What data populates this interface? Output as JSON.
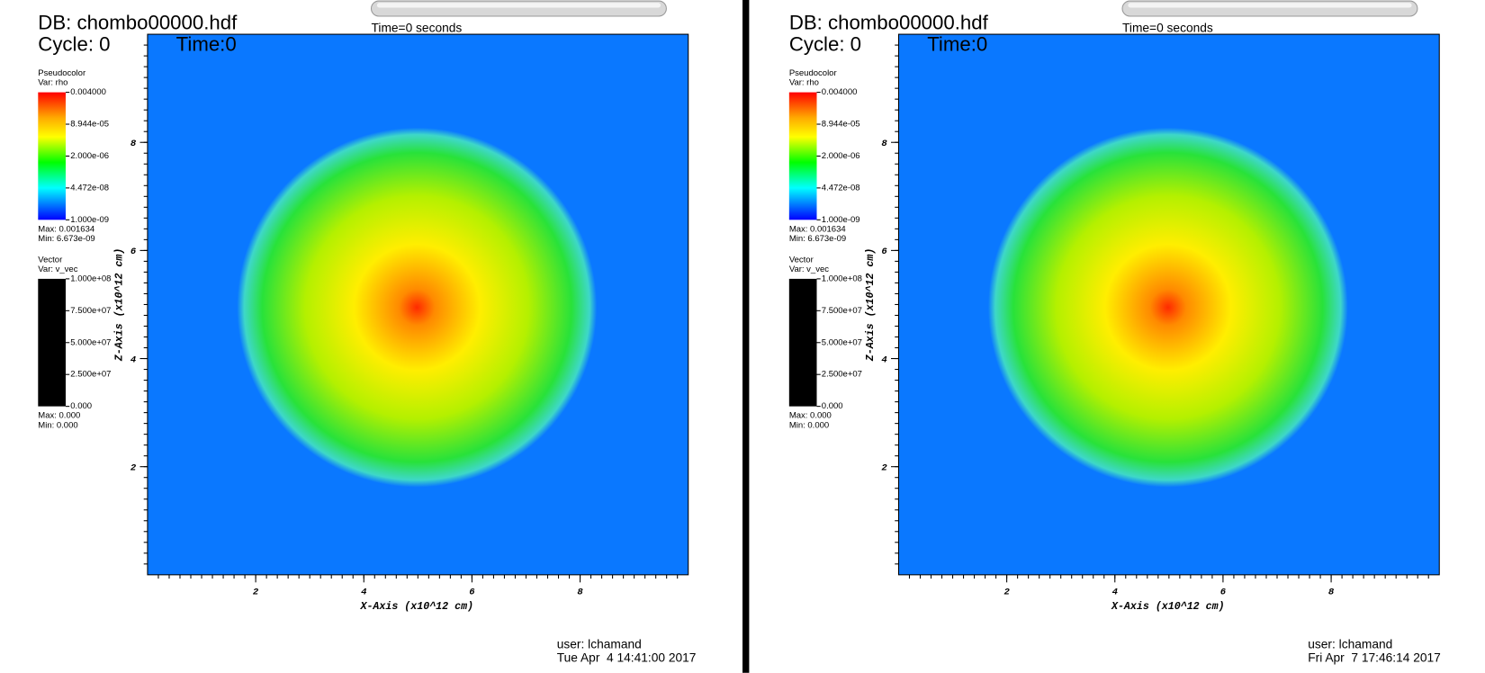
{
  "panels": [
    {
      "db": "DB: chombo00000.hdf",
      "cycle": "Cycle: 0",
      "time": "Time:0",
      "slider_label": "Time=0 seconds",
      "pseudocolor": {
        "title": "Pseudocolor",
        "var": "Var: rho",
        "labels": [
          "0.004000",
          "8.944e-05",
          "2.000e-06",
          "4.472e-08",
          "1.000e-09"
        ],
        "max": "Max: 0.001634",
        "min": "Min: 6.673e-09"
      },
      "vector": {
        "title": "Vector",
        "var": "Var: v_vec",
        "labels": [
          "1.000e+08",
          "7.500e+07",
          "5.000e+07",
          "2.500e+07",
          "0.000"
        ],
        "max": "Max: 0.000",
        "min": "Min: 0.000"
      },
      "x_axis": {
        "label": "X-Axis (x10^12 cm)",
        "lim": [
          0,
          10
        ],
        "ticks": [
          2,
          4,
          6,
          8
        ]
      },
      "y_axis": {
        "label": "Z-Axis (x10^12 cm)",
        "lim": [
          0,
          10
        ],
        "ticks": [
          2,
          4,
          6,
          8
        ]
      },
      "user": "user: lchamand",
      "date": "Tue Apr  4 14:41:00 2017"
    },
    {
      "db": "DB: chombo00000.hdf",
      "cycle": "Cycle: 0",
      "time": "Time:0",
      "slider_label": "Time=0 seconds",
      "pseudocolor": {
        "title": "Pseudocolor",
        "var": "Var: rho",
        "labels": [
          "0.004000",
          "8.944e-05",
          "2.000e-06",
          "4.472e-08",
          "1.000e-09"
        ],
        "max": "Max: 0.001634",
        "min": "Min: 6.673e-09"
      },
      "vector": {
        "title": "Vector",
        "var": "Var: v_vec",
        "labels": [
          "1.000e+08",
          "7.500e+07",
          "5.000e+07",
          "2.500e+07",
          "0.000"
        ],
        "max": "Max: 0.000",
        "min": "Min: 0.000"
      },
      "x_axis": {
        "label": "X-Axis (x10^12 cm)",
        "lim": [
          0,
          10
        ],
        "ticks": [
          2,
          4,
          6,
          8
        ]
      },
      "y_axis": {
        "label": "Z-Axis (x10^12 cm)",
        "lim": [
          0,
          10
        ],
        "ticks": [
          2,
          4,
          6,
          8
        ]
      },
      "user": "user: lchamand",
      "date": "Fri Apr  7 17:46:14 2017"
    }
  ]
}
